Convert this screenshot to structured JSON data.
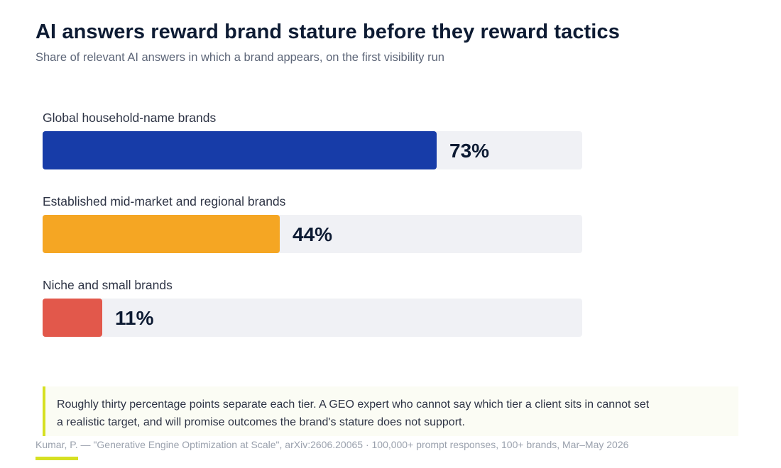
{
  "title": "AI answers reward brand stature before they reward tactics",
  "subtitle": "Share of relevant AI answers in which a brand appears, on the first visibility run",
  "chart_data": {
    "type": "bar",
    "orientation": "horizontal",
    "categories": [
      "Global household-name brands",
      "Established mid-market and regional brands",
      "Niche and small brands"
    ],
    "values": [
      73,
      44,
      11
    ],
    "value_labels": [
      "73%",
      "44%",
      "11%"
    ],
    "colors": [
      "#173ca8",
      "#f5a623",
      "#e2584b"
    ],
    "track_color": "#f0f1f5",
    "xlim": [
      0,
      100
    ],
    "grid": false,
    "legend": "none"
  },
  "callout": {
    "text": "Roughly thirty percentage points separate each tier. A GEO expert who cannot say which tier a client sits in cannot set a realistic target, and will promise outcomes the brand's stature does not support."
  },
  "source": "Kumar, P. — \"Generative Engine Optimization at Scale\", arXiv:2606.20065 · 100,000+ prompt responses, 100+ brands, Mar–May 2026",
  "accent_color": "#d6e022"
}
